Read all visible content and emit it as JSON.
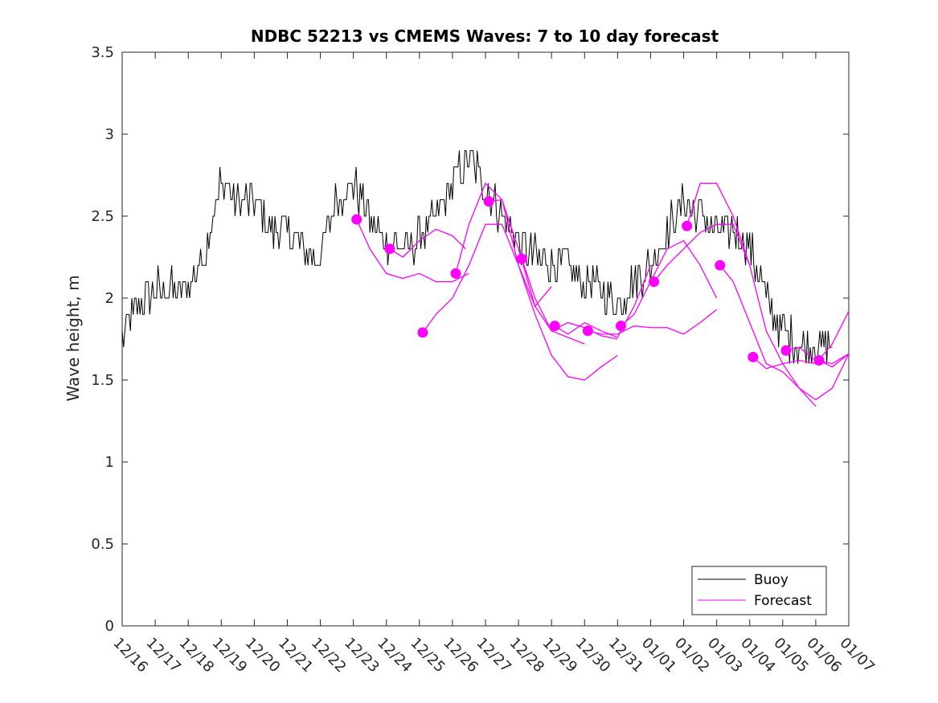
{
  "chart_data": {
    "type": "line",
    "title": "NDBC 52213 vs CMEMS Waves: 7 to 10 day forecast",
    "xlabel": "",
    "ylabel": "Wave height, m",
    "xlim": [
      0,
      22
    ],
    "ylim": [
      0,
      3.5
    ],
    "yticks": [
      0,
      0.5,
      1,
      1.5,
      2,
      2.5,
      3,
      3.5
    ],
    "ytick_labels": [
      "0",
      "0.5",
      "1",
      "1.5",
      "2",
      "2.5",
      "3",
      "3.5"
    ],
    "xticks": [
      0,
      1,
      2,
      3,
      4,
      5,
      6,
      7,
      8,
      9,
      10,
      11,
      12,
      13,
      14,
      15,
      16,
      17,
      18,
      19,
      20,
      21,
      22
    ],
    "xtick_labels": [
      "12/16",
      "12/17",
      "12/18",
      "12/19",
      "12/20",
      "12/21",
      "12/22",
      "12/23",
      "12/24",
      "12/25",
      "12/26",
      "12/27",
      "12/28",
      "12/29",
      "12/30",
      "12/31",
      "01/01",
      "01/02",
      "01/03",
      "01/04",
      "01/05",
      "01/06",
      "01/07"
    ],
    "grid": false,
    "legend": {
      "position": "bottom-right",
      "entries": [
        "Buoy",
        "Forecast"
      ]
    },
    "colors": {
      "buoy": "#000000",
      "forecast": "#ff00ff",
      "axes": "#262626"
    },
    "buoy": {
      "name": "Buoy",
      "x": [
        0,
        0.5,
        1,
        1.5,
        2,
        2.5,
        3,
        3.5,
        4,
        4.5,
        5,
        5.5,
        6,
        6.5,
        7,
        7.5,
        8,
        8.5,
        9,
        9.5,
        10,
        10.5,
        11,
        11.5,
        12,
        12.5,
        13,
        13.5,
        14,
        14.5,
        15,
        15.5,
        16,
        16.5,
        17,
        17.5,
        18,
        18.5,
        19,
        19.5,
        20,
        20.5,
        21,
        21.5
      ],
      "y": [
        1.75,
        1.95,
        2.05,
        2.05,
        2.05,
        2.3,
        2.7,
        2.6,
        2.6,
        2.4,
        2.4,
        2.3,
        2.25,
        2.6,
        2.7,
        2.5,
        2.35,
        2.3,
        2.35,
        2.5,
        2.7,
        2.85,
        2.7,
        2.5,
        2.35,
        2.25,
        2.2,
        2.2,
        2.1,
        2.05,
        1.95,
        2.1,
        2.2,
        2.4,
        2.6,
        2.5,
        2.4,
        2.4,
        2.3,
        2.0,
        1.8,
        1.7,
        1.7,
        1.75
      ],
      "amplitude": 0.12
    },
    "forecast_runs": [
      {
        "x": [
          7.1,
          7.5,
          8,
          8.5,
          9,
          9.5,
          10,
          10.5
        ],
        "y": [
          2.48,
          2.3,
          2.15,
          2.12,
          2.15,
          2.1,
          2.1,
          2.15
        ]
      },
      {
        "x": [
          8.1,
          8.5,
          9,
          9.5,
          10,
          10.4
        ],
        "y": [
          2.3,
          2.25,
          2.35,
          2.42,
          2.38,
          2.3
        ]
      },
      {
        "x": [
          9.1,
          9.5,
          10,
          10.5,
          11,
          11.5,
          12,
          12.5,
          13
        ],
        "y": [
          1.79,
          1.9,
          2.0,
          2.2,
          2.45,
          2.45,
          2.2,
          1.95,
          2.07
        ]
      },
      {
        "x": [
          10.1,
          10.5,
          11,
          11.5,
          12,
          12.5,
          13,
          13.5,
          14,
          14.5,
          15
        ],
        "y": [
          2.15,
          2.45,
          2.7,
          2.6,
          2.2,
          1.9,
          1.65,
          1.52,
          1.5,
          1.58,
          1.65
        ]
      },
      {
        "x": [
          11.1,
          11.5,
          12,
          12.5,
          13,
          13.5,
          14
        ],
        "y": [
          2.59,
          2.6,
          2.3,
          1.95,
          1.8,
          1.76,
          1.72
        ]
      },
      {
        "x": [
          12.1,
          12.5,
          13,
          13.5,
          14,
          14.5,
          15
        ],
        "y": [
          2.24,
          2.0,
          1.8,
          1.85,
          1.82,
          1.77,
          1.75
        ]
      },
      {
        "x": [
          13.1,
          13.5,
          14,
          14.5,
          15,
          15.5,
          16
        ],
        "y": [
          1.83,
          1.78,
          1.85,
          1.8,
          1.76,
          1.95,
          2.2
        ]
      },
      {
        "x": [
          14.1,
          14.5,
          15,
          15.5,
          16,
          16.5,
          17,
          17.5,
          18
        ],
        "y": [
          1.8,
          1.78,
          1.78,
          1.83,
          1.82,
          1.82,
          1.78,
          1.85,
          1.93
        ]
      },
      {
        "x": [
          15.1,
          15.5,
          16,
          16.5,
          17,
          17.5,
          18
        ],
        "y": [
          1.83,
          1.9,
          2.1,
          2.3,
          2.35,
          2.2,
          2.0
        ]
      },
      {
        "x": [
          16.1,
          16.5,
          17,
          17.5,
          18,
          18.5,
          19
        ],
        "y": [
          2.1,
          2.2,
          2.3,
          2.4,
          2.45,
          2.45,
          2.2
        ]
      },
      {
        "x": [
          17.1,
          17.5,
          18,
          18.5,
          19,
          19.5,
          20,
          20.5,
          21,
          21.5,
          22
        ],
        "y": [
          2.44,
          2.7,
          2.7,
          2.5,
          2.2,
          1.8,
          1.6,
          1.45,
          1.38,
          1.45,
          1.66
        ]
      },
      {
        "x": [
          18.1,
          18.5,
          19,
          19.5,
          20,
          20.5,
          21
        ],
        "y": [
          2.2,
          2.1,
          1.85,
          1.6,
          1.55,
          1.45,
          1.34
        ]
      },
      {
        "x": [
          19.1,
          19.5,
          20,
          20.5,
          21,
          21.5,
          22
        ],
        "y": [
          1.64,
          1.57,
          1.6,
          1.62,
          1.6,
          1.72,
          1.92
        ]
      },
      {
        "x": [
          20.1,
          20.5,
          21,
          21.5,
          22
        ],
        "y": [
          1.68,
          1.7,
          1.62,
          1.6,
          1.66
        ]
      },
      {
        "x": [
          21.1,
          21.5,
          22
        ],
        "y": [
          1.62,
          1.58,
          1.66
        ]
      }
    ],
    "forecast_markers": {
      "x": [
        7.1,
        8.1,
        9.1,
        10.1,
        11.1,
        12.1,
        13.1,
        14.1,
        15.1,
        16.1,
        17.1,
        18.1,
        19.1,
        20.1,
        21.1
      ],
      "y": [
        2.48,
        2.3,
        1.79,
        2.15,
        2.59,
        2.24,
        1.83,
        1.8,
        1.83,
        2.1,
        2.44,
        2.2,
        1.64,
        1.68,
        1.62
      ]
    }
  }
}
